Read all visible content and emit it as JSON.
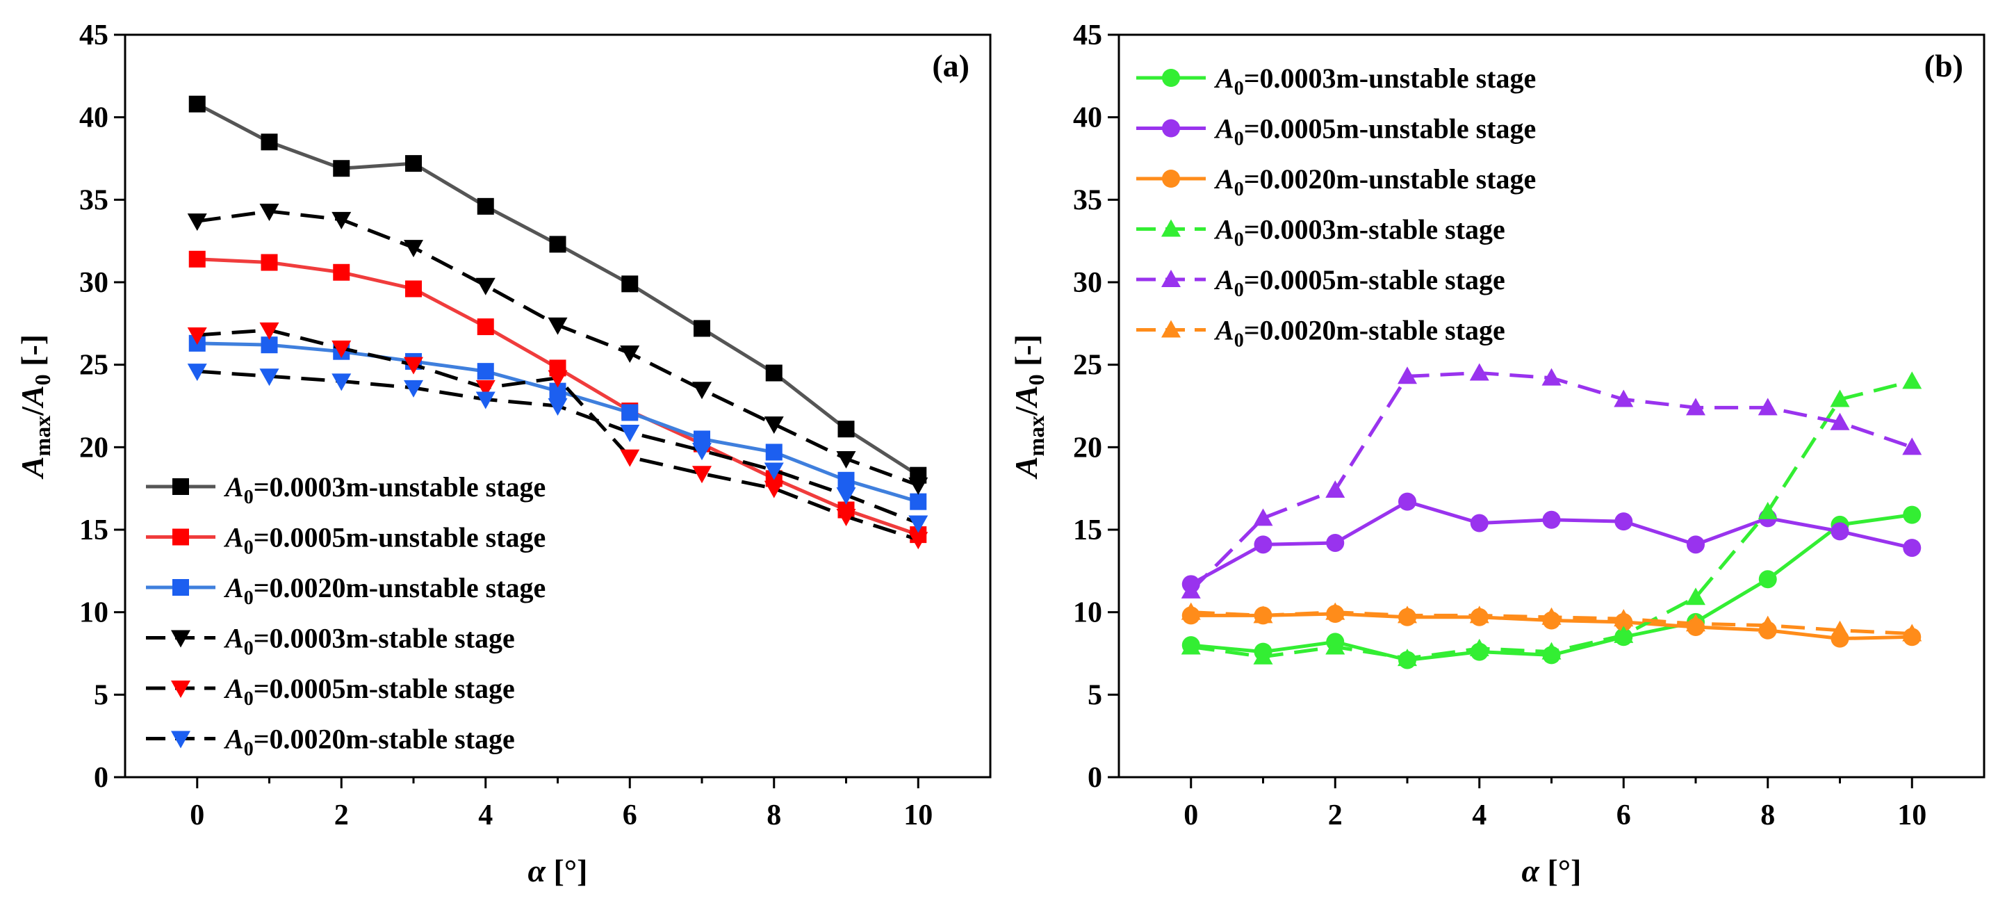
{
  "charts": [
    {
      "chart_data": {
        "type": "line",
        "panel_label": "(a)",
        "xlabel": "α [°]",
        "ylabel": "Amax/A0 [-]",
        "xlim": [
          -1,
          11
        ],
        "ylim": [
          0,
          45
        ],
        "xticks": [
          "0",
          "2",
          "4",
          "6",
          "8",
          "10"
        ],
        "yticks": [
          "0",
          "5",
          "10",
          "15",
          "20",
          "25",
          "30",
          "35",
          "40",
          "45"
        ],
        "x": [
          0,
          1,
          2,
          3,
          4,
          5,
          6,
          7,
          8,
          9,
          10
        ],
        "legend_position": "bottom-left",
        "series": [
          {
            "name": "=0.0003m-unstable stage",
            "legend_prefix": "A",
            "legend_sub": "0",
            "color": "#555555",
            "marker_color": "#000000",
            "marker": "square",
            "dash": "solid",
            "values": [
              40.8,
              38.5,
              36.9,
              37.2,
              34.6,
              32.3,
              29.9,
              27.2,
              24.5,
              21.1,
              18.3
            ]
          },
          {
            "name": "=0.0005m-unstable stage",
            "legend_prefix": "A",
            "legend_sub": "0",
            "color": "#f03c3c",
            "marker_color": "#ff0000",
            "marker": "square",
            "dash": "solid",
            "values": [
              31.4,
              31.2,
              30.6,
              29.6,
              27.3,
              24.8,
              22.2,
              20.2,
              18.1,
              16.2,
              14.7
            ]
          },
          {
            "name": "=0.0020m-unstable stage",
            "legend_prefix": "A",
            "legend_sub": "0",
            "color": "#3f7fdd",
            "marker_color": "#1c5ff0",
            "marker": "square",
            "dash": "solid",
            "values": [
              26.3,
              26.2,
              25.8,
              25.2,
              24.6,
              23.4,
              22.1,
              20.5,
              19.7,
              18.0,
              16.7
            ]
          },
          {
            "name": "=0.0003m-stable stage",
            "legend_prefix": "A",
            "legend_sub": "0",
            "color": "#000000",
            "marker_color": "#000000",
            "marker": "triangle-down",
            "dash": "dashed",
            "values": [
              33.7,
              34.3,
              33.8,
              32.1,
              29.8,
              27.4,
              25.7,
              23.5,
              21.4,
              19.3,
              17.7
            ]
          },
          {
            "name": "=0.0005m-stable stage",
            "legend_prefix": "A",
            "legend_sub": "0",
            "color": "#000000",
            "marker_color": "#ff0000",
            "marker": "triangle-down",
            "dash": "dashed",
            "values": [
              26.8,
              27.1,
              26.0,
              25.0,
              23.6,
              24.2,
              19.4,
              18.4,
              17.5,
              15.8,
              14.4
            ]
          },
          {
            "name": "=0.0020m-stable stage",
            "legend_prefix": "A",
            "legend_sub": "0",
            "color": "#000000",
            "marker_color": "#1c5ff0",
            "marker": "triangle-down",
            "dash": "dashed",
            "values": [
              24.6,
              24.3,
              24.0,
              23.6,
              22.9,
              22.5,
              20.9,
              19.8,
              18.6,
              17.1,
              15.4
            ]
          }
        ]
      }
    },
    {
      "chart_data": {
        "type": "line",
        "panel_label": "(b)",
        "xlabel": "α [°]",
        "ylabel": "Amax/A0 [-]",
        "xlim": [
          -1,
          11
        ],
        "ylim": [
          0,
          45
        ],
        "xticks": [
          "0",
          "2",
          "4",
          "6",
          "8",
          "10"
        ],
        "yticks": [
          "0",
          "5",
          "10",
          "15",
          "20",
          "25",
          "30",
          "35",
          "40",
          "45"
        ],
        "x": [
          0,
          1,
          2,
          3,
          4,
          5,
          6,
          7,
          8,
          9,
          10
        ],
        "legend_position": "top-left",
        "series": [
          {
            "name": "=0.0003m-unstable stage",
            "legend_prefix": "A",
            "legend_sub": "0",
            "color": "#33ee33",
            "marker_color": "#33ee33",
            "marker": "circle",
            "dash": "solid",
            "values": [
              8.0,
              7.6,
              8.2,
              7.1,
              7.6,
              7.4,
              8.5,
              9.4,
              12.0,
              15.3,
              15.9
            ]
          },
          {
            "name": "=0.0005m-unstable stage",
            "legend_prefix": "A",
            "legend_sub": "0",
            "color": "#9933ee",
            "marker_color": "#9933ee",
            "marker": "circle",
            "dash": "solid",
            "values": [
              11.7,
              14.1,
              14.2,
              16.7,
              15.4,
              15.6,
              15.5,
              14.1,
              15.7,
              14.9,
              13.9
            ]
          },
          {
            "name": "=0.0020m-unstable stage",
            "legend_prefix": "A",
            "legend_sub": "0",
            "color": "#ff8c1a",
            "marker_color": "#ff8c1a",
            "marker": "circle",
            "dash": "solid",
            "values": [
              9.8,
              9.8,
              9.9,
              9.7,
              9.7,
              9.5,
              9.4,
              9.1,
              8.9,
              8.4,
              8.5
            ]
          },
          {
            "name": "=0.0003m-stable stage",
            "legend_prefix": "A",
            "legend_sub": "0",
            "color": "#33ee33",
            "marker_color": "#33ee33",
            "marker": "triangle-up",
            "dash": "dashed",
            "values": [
              7.9,
              7.3,
              7.9,
              7.2,
              7.8,
              7.6,
              8.6,
              10.9,
              16.1,
              22.9,
              24.0
            ]
          },
          {
            "name": "=0.0005m-stable stage",
            "legend_prefix": "A",
            "legend_sub": "0",
            "color": "#9933ee",
            "marker_color": "#9933ee",
            "marker": "triangle-up",
            "dash": "dashed",
            "values": [
              11.3,
              15.7,
              17.4,
              24.3,
              24.5,
              24.2,
              22.9,
              22.4,
              22.4,
              21.5,
              20.0
            ]
          },
          {
            "name": "=0.0020m-stable stage",
            "legend_prefix": "A",
            "legend_sub": "0",
            "color": "#ff8c1a",
            "marker_color": "#ff8c1a",
            "marker": "triangle-up",
            "dash": "dashed",
            "values": [
              10.0,
              9.8,
              10.0,
              9.8,
              9.8,
              9.7,
              9.6,
              9.3,
              9.2,
              8.9,
              8.7
            ]
          }
        ]
      }
    }
  ]
}
